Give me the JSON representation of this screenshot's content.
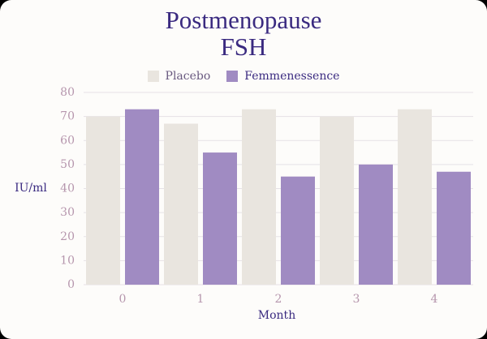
{
  "chart_data": {
    "type": "bar",
    "title": "Postmenopause FSH",
    "categories": [
      "0",
      "1",
      "2",
      "3",
      "4"
    ],
    "series": [
      {
        "name": "Placebo",
        "color": "#e9e5df",
        "values": [
          70,
          67,
          73,
          70,
          73
        ]
      },
      {
        "name": "Femmenessence",
        "color": "#a08bc2",
        "values": [
          73,
          55,
          45,
          50,
          47
        ]
      }
    ],
    "x_label": "Month",
    "y_label": "IU/ml",
    "ylim": [
      0,
      80
    ],
    "yticks": [
      0,
      10,
      20,
      30,
      40,
      50,
      60,
      70,
      80
    ],
    "grid": true,
    "legend": "top"
  }
}
